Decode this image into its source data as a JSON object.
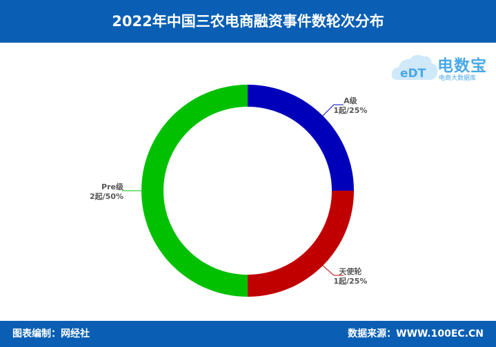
{
  "title": "2022年中国三农电商融资事件数轮次分布",
  "footer": {
    "left": "图表编制：网经社",
    "right": "数据来源：WWW.100EC.CN"
  },
  "logo": {
    "mark": "eDT",
    "name": "电数宝",
    "sub": "电商大数据库"
  },
  "colors": {
    "header": "#0a5fb4",
    "a_round": "#0000bb",
    "angel": "#c00000",
    "pre": "#00c000"
  },
  "chart_data": {
    "type": "pie",
    "title": "2022年中国三农电商融资事件数轮次分布",
    "slices": [
      {
        "name": "A级",
        "count": 1,
        "count_label": "1起",
        "percent": 25,
        "percent_label": "25%",
        "color": "#0000bb"
      },
      {
        "name": "天使轮",
        "count": 1,
        "count_label": "1起",
        "percent": 25,
        "percent_label": "25%",
        "color": "#c00000"
      },
      {
        "name": "Pre级",
        "count": 2,
        "count_label": "2起",
        "percent": 50,
        "percent_label": "50%",
        "color": "#00c000"
      }
    ],
    "donut": true,
    "legend": "none"
  }
}
